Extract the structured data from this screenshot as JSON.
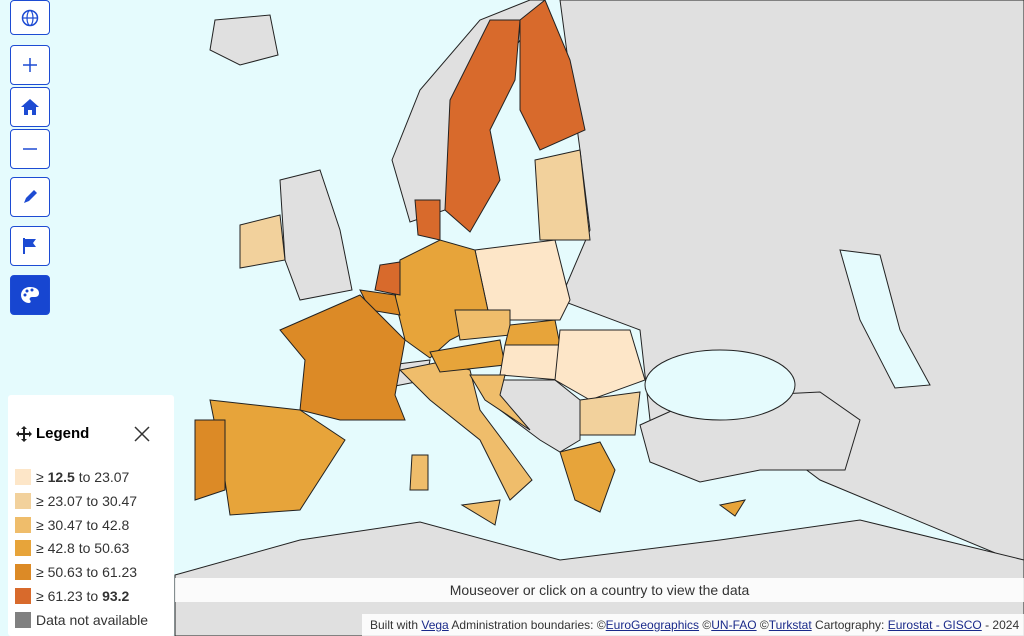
{
  "legend": {
    "title": "Legend",
    "items": [
      {
        "parts": [
          {
            "text": "≥ "
          },
          {
            "text": "12.5",
            "bold": true
          },
          {
            "text": " to 23.07"
          }
        ],
        "color": "#fde6c8"
      },
      {
        "parts": [
          {
            "text": "≥ 23.07 to 30.47"
          }
        ],
        "color": "#f2d19c"
      },
      {
        "parts": [
          {
            "text": "≥ 30.47 to 42.8"
          }
        ],
        "color": "#efbd6b"
      },
      {
        "parts": [
          {
            "text": "≥ 42.8 to 50.63"
          }
        ],
        "color": "#e7a43a"
      },
      {
        "parts": [
          {
            "text": "≥ 50.63 to 61.23"
          }
        ],
        "color": "#dc8a26"
      },
      {
        "parts": [
          {
            "text": "≥ 61.23 to "
          },
          {
            "text": "93.2",
            "bold": true
          }
        ],
        "color": "#d86a2c"
      },
      {
        "parts": [
          {
            "text": "Data not available"
          }
        ],
        "color": "#808080"
      }
    ]
  },
  "hint": "Mouseover or click on a country to view the data",
  "attribution": {
    "parts": [
      {
        "text": "Built with "
      },
      {
        "text": "Vega",
        "link": true
      },
      {
        "text": " Administration boundaries: ©"
      },
      {
        "text": "EuroGeographics",
        "link": true
      },
      {
        "text": " ©"
      },
      {
        "text": "UN-FAO",
        "link": true
      },
      {
        "text": " ©"
      },
      {
        "text": "Turkstat",
        "link": true
      },
      {
        "text": " Cartography: "
      },
      {
        "text": "Eurostat - GISCO",
        "link": true
      },
      {
        "text": " - 2024"
      }
    ]
  }
}
